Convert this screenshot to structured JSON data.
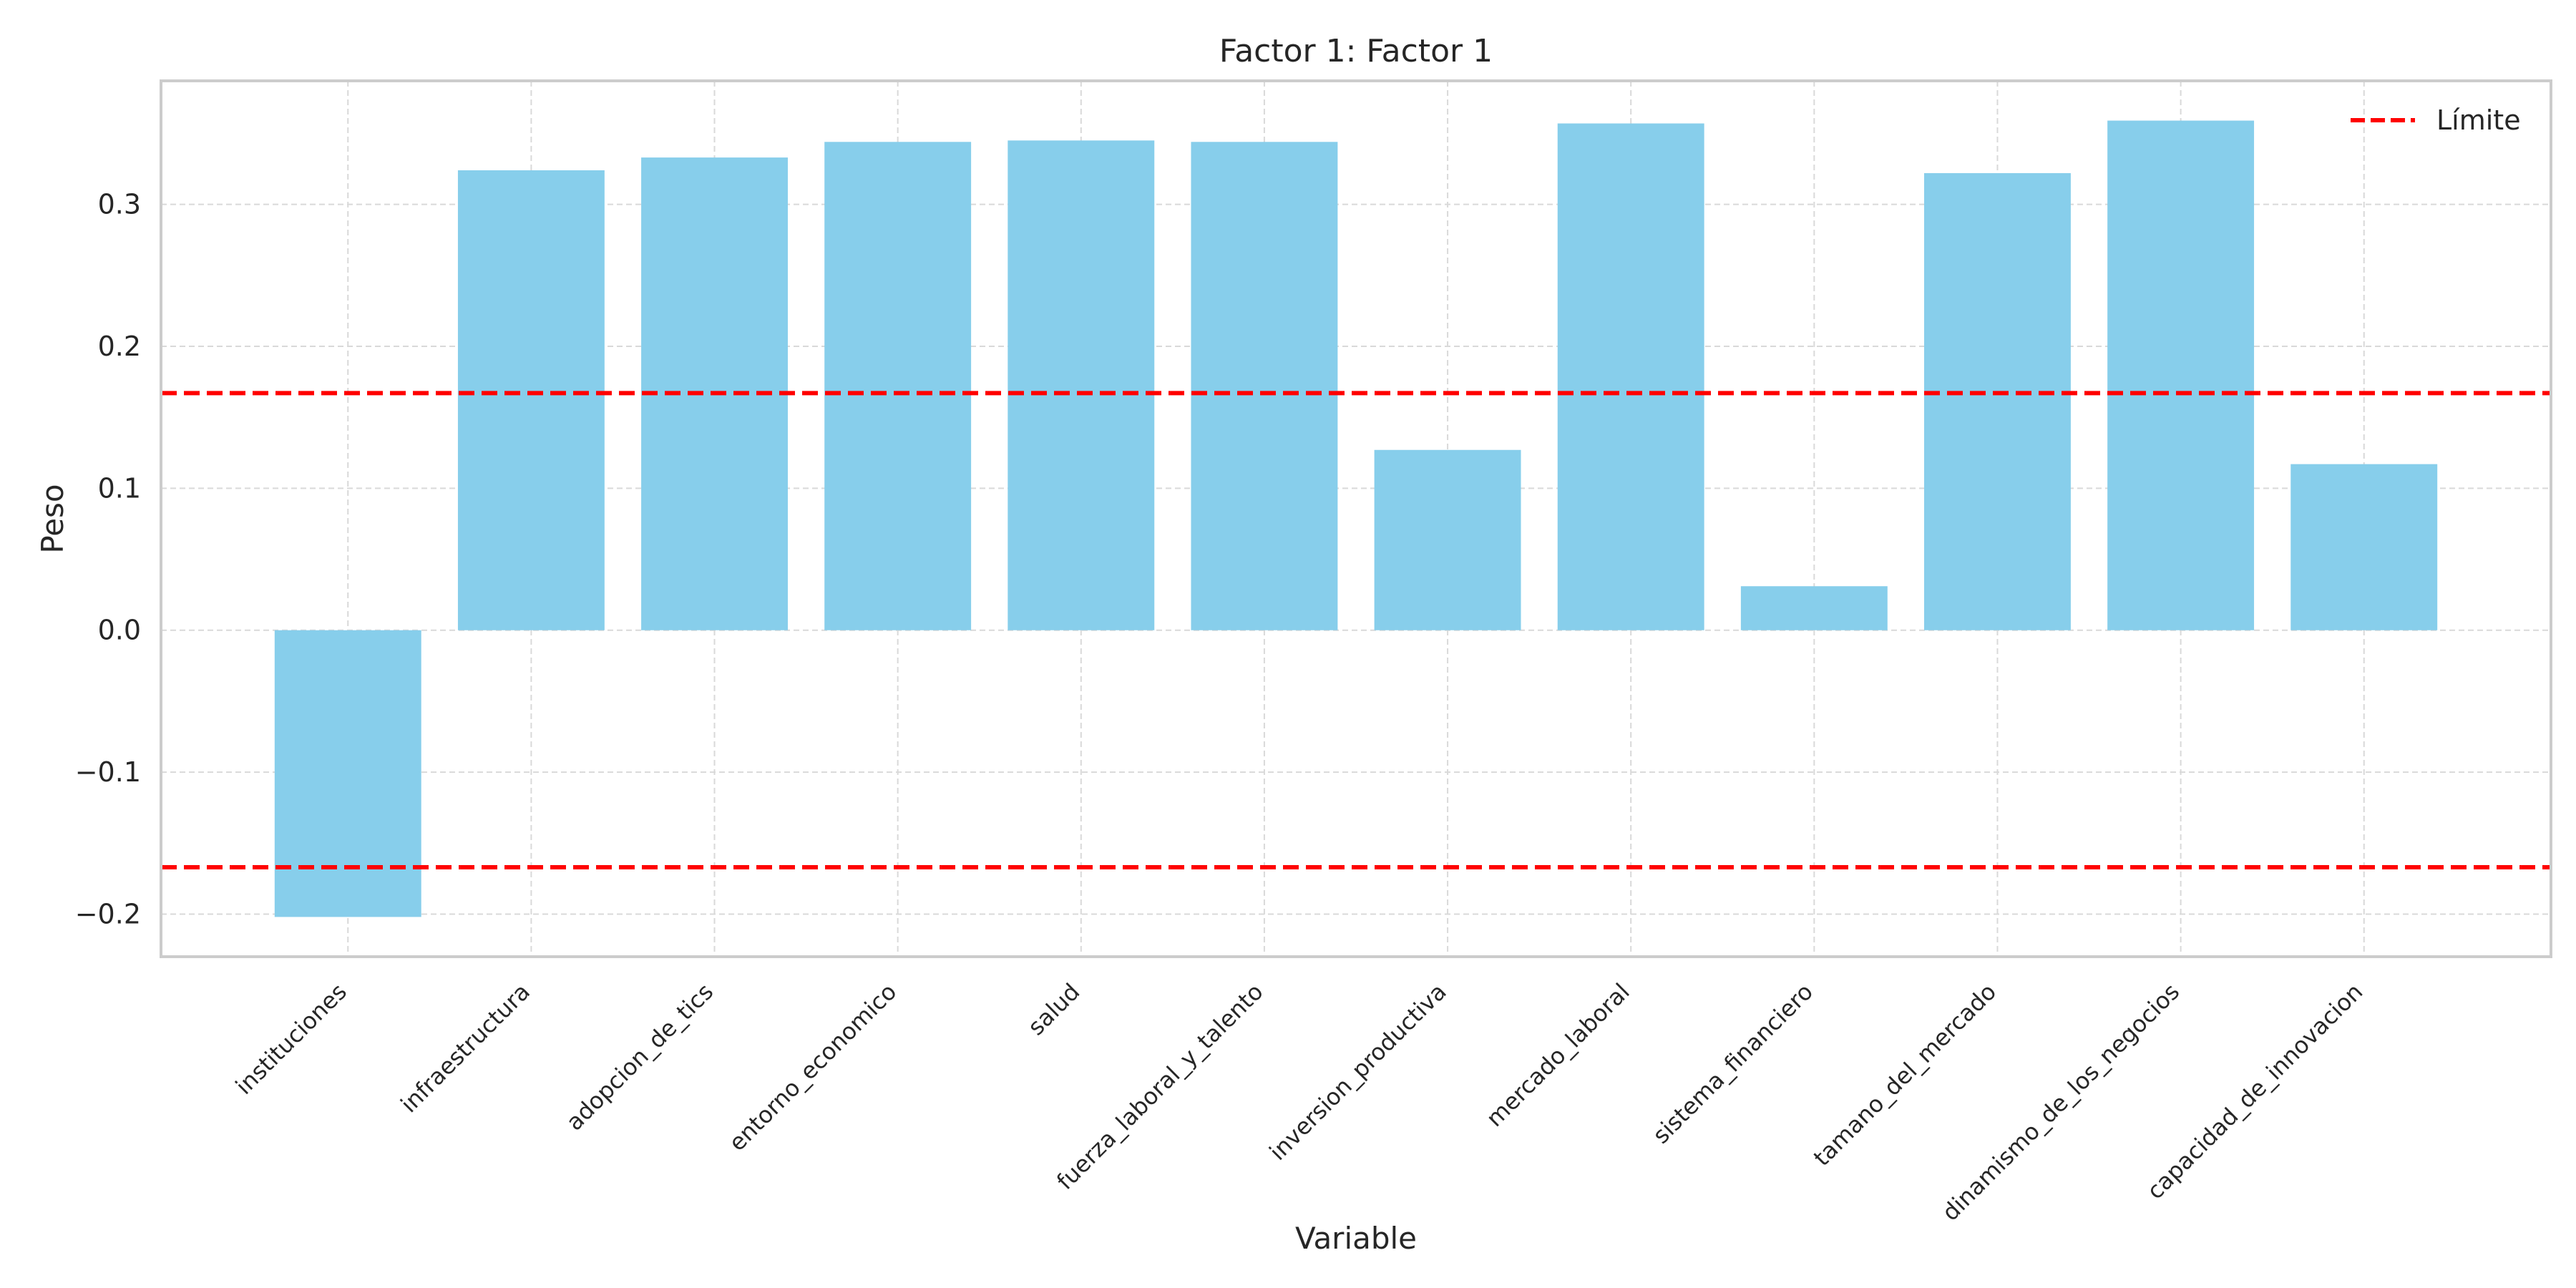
{
  "chart_data": {
    "type": "bar",
    "title": "Factor 1: Factor 1",
    "xlabel": "Variable",
    "ylabel": "Peso",
    "categories": [
      "instituciones",
      "infraestructura",
      "adopcion_de_tics",
      "entorno_economico",
      "salud",
      "fuerza_laboral_y_talento",
      "inversion_productiva",
      "mercado_laboral",
      "sistema_financiero",
      "tamano_del_mercado",
      "dinamismo_de_los_negocios",
      "capacidad_de_innovacion"
    ],
    "values": [
      -0.202,
      0.324,
      0.333,
      0.344,
      0.345,
      0.344,
      0.127,
      0.357,
      0.031,
      0.322,
      0.359,
      0.117
    ],
    "threshold": 0.167,
    "legend": {
      "label": "Límite",
      "placement": "top-right"
    },
    "yticks": [
      -0.2,
      -0.1,
      0.0,
      0.1,
      0.2,
      0.3
    ],
    "ytick_labels": [
      "−0.2",
      "−0.1",
      "0.0",
      "0.1",
      "0.2",
      "0.3"
    ],
    "ylim": [
      -0.23,
      0.387
    ],
    "xlim": [
      -1.02,
      12.02
    ],
    "grid": true,
    "colors": {
      "bar": "#87ceeb",
      "threshold": "#ff0000",
      "grid": "#d9d9d9",
      "axes": "#cccccc",
      "text": "#262626"
    }
  }
}
